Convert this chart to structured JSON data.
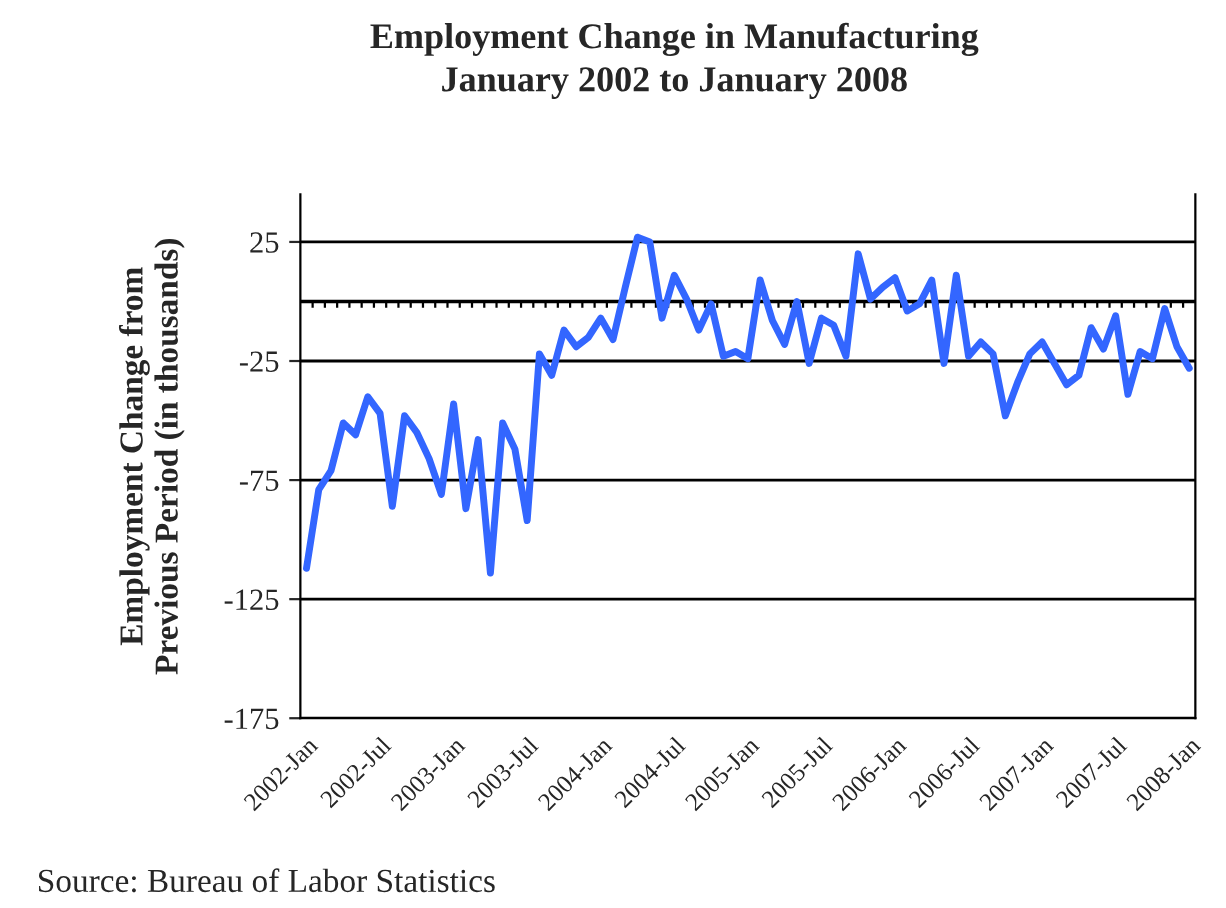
{
  "chart_data": {
    "type": "line",
    "title": "Employment Change in Manufacturing\nJanuary 2002 to January 2008",
    "ylabel": "Employment Change from\nPrevious Period (in thousands)",
    "categories": [
      "2002-Jan",
      null,
      null,
      null,
      null,
      null,
      "2002-Jul",
      null,
      null,
      null,
      null,
      null,
      "2003-Jan",
      null,
      null,
      null,
      null,
      null,
      "2003-Jul",
      null,
      null,
      null,
      null,
      null,
      "2004-Jan",
      null,
      null,
      null,
      null,
      null,
      "2004-Jul",
      null,
      null,
      null,
      null,
      null,
      "2005-Jan",
      null,
      null,
      null,
      null,
      null,
      "2005-Jul",
      null,
      null,
      null,
      null,
      null,
      "2006-Jan",
      null,
      null,
      null,
      null,
      null,
      "2006-Jul",
      null,
      null,
      null,
      null,
      null,
      "2007-Jan",
      null,
      null,
      null,
      null,
      null,
      "2007-Jul",
      null,
      null,
      null,
      null,
      null,
      "2008-Jan"
    ],
    "series": [
      {
        "color": "#3366ff",
        "values": [
          -112,
          -79,
          -71,
          -51,
          -56,
          -40,
          -47,
          -86,
          -48,
          -55,
          -66,
          -81,
          -43,
          -87,
          -58,
          -114,
          -51,
          -62,
          -92,
          -22,
          -31,
          -12,
          -19,
          -15,
          -7,
          -16,
          6,
          27,
          25,
          -7,
          11,
          1,
          -12,
          -1,
          -23,
          -21,
          -24,
          9,
          -8,
          -18,
          0,
          -26,
          -7,
          -10,
          -23,
          20,
          1,
          6,
          10,
          -4,
          -1,
          9,
          -26,
          11,
          -23,
          -17,
          -22,
          -48,
          -34,
          -22,
          -17,
          -26,
          -35,
          -31,
          -11,
          -20,
          -6,
          -39,
          -21,
          -24,
          -3,
          -19,
          -28
        ]
      }
    ],
    "ylim": [
      -175,
      45
    ],
    "yticks": [
      -175,
      -125,
      -75,
      -25,
      25
    ],
    "grid": "y",
    "legend": false,
    "marker": "none",
    "line_style": "solid",
    "ref_lines": [
      {
        "axis": "y",
        "value": 0
      }
    ],
    "annotations": [
      "Source: Bureau of Labor Statistics"
    ]
  }
}
